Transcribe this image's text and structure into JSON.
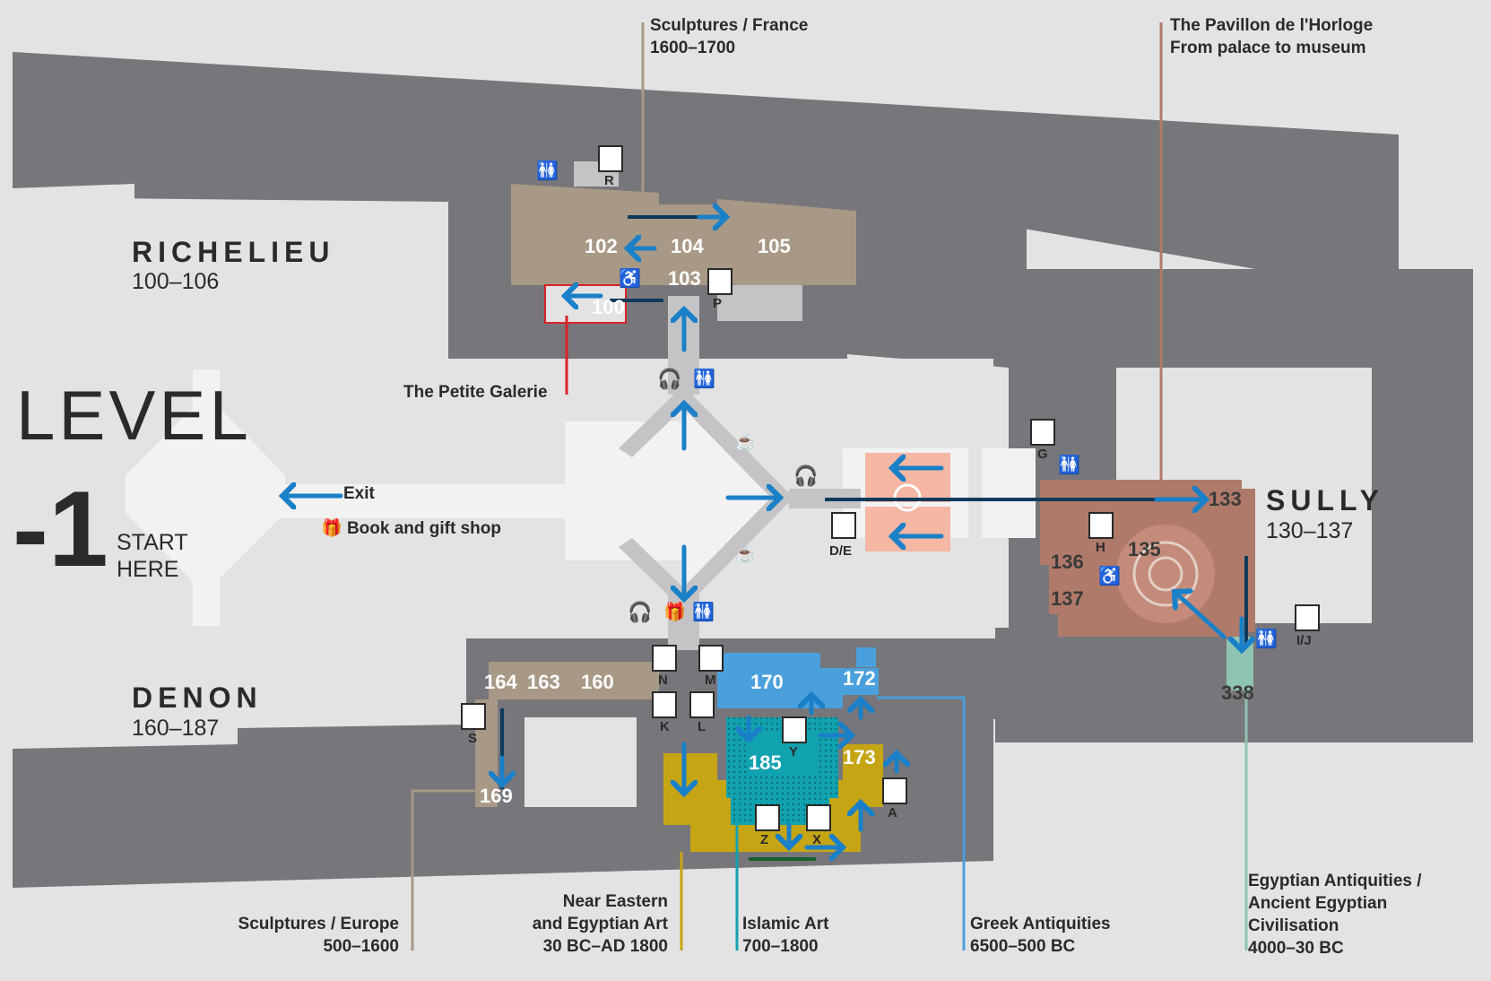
{
  "level": {
    "word": "LEVEL",
    "number": "-1",
    "start_line1": "START",
    "start_line2": "HERE"
  },
  "wings": {
    "richelieu": {
      "name": "RICHELIEU",
      "range": "100–106"
    },
    "denon": {
      "name": "DENON",
      "range": "160–187"
    },
    "sully": {
      "name": "SULLY",
      "range": "130–137"
    }
  },
  "callouts": {
    "sculptures_france": {
      "line1": "Sculptures / France",
      "line2": "1600–1700"
    },
    "pavillon": {
      "line1": "The Pavillon de l'Horloge",
      "line2": "From palace to museum"
    },
    "petite_galerie": "The Petite Galerie",
    "exit": "Exit",
    "shop": "Book and gift shop",
    "sculptures_europe": {
      "line1": "Sculptures / Europe",
      "line2": "500–1600"
    },
    "near_eastern": {
      "line1": "Near Eastern",
      "line2": "and Egyptian Art",
      "line3": "30 BC–AD 1800"
    },
    "islamic": {
      "line1": "Islamic Art",
      "line2": "700–1800"
    },
    "greek": {
      "line1": "Greek Antiquities",
      "line2": "6500–500 BC"
    },
    "egyptian": {
      "line1": "Egyptian Antiquities /",
      "line2": "Ancient Egyptian",
      "line3": "Civilisation",
      "line4": "4000–30 BC"
    }
  },
  "rooms": {
    "r102": "102",
    "r104": "104",
    "r105": "105",
    "r103": "103",
    "r100": "100",
    "r133": "133",
    "r135": "135",
    "r136": "136",
    "r137": "137",
    "r338": "338",
    "r164": "164",
    "r163": "163",
    "r160": "160",
    "r170": "170",
    "r172": "172",
    "r185": "185",
    "r173": "173",
    "r169": "169"
  },
  "letters": {
    "R": "R",
    "P": "P",
    "G": "G",
    "DE": "D/E",
    "H": "H",
    "IJ": "I/J",
    "N": "N",
    "M": "M",
    "K": "K",
    "L": "L",
    "Y": "Y",
    "S": "S",
    "A": "A",
    "Z": "Z",
    "X": "X"
  },
  "colors": {
    "background": "#e3e3e4",
    "building": "#77767b",
    "concourse": "#f2f2f3",
    "sculptures_france": "#a89886",
    "pavillon": "#b07a6a",
    "petite_galerie": "#d9232a",
    "arrow": "#1a80c8",
    "greek": "#4aa0dc",
    "islamic": "#11a2b0",
    "near_eastern": "#c6a514",
    "egyptian": "#8fc4b2",
    "europe": "#a89886"
  },
  "icons": [
    "toilet-icon",
    "elevator-icon",
    "baby-change-icon",
    "audio-guide-icon",
    "cafe-icon",
    "gift-icon",
    "stairs-icon",
    "escalator-icon",
    "wheelchair-icon"
  ]
}
